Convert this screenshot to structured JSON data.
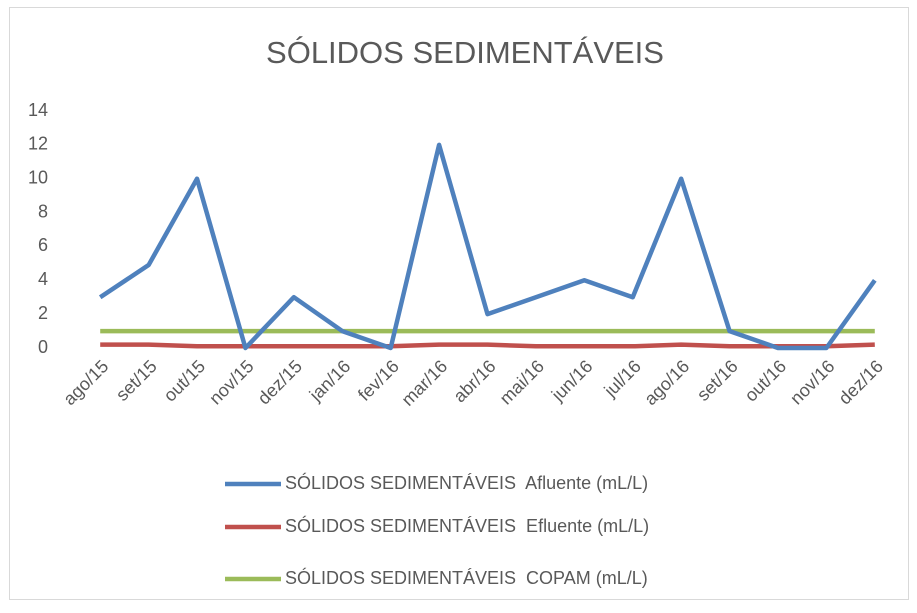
{
  "chart_data": {
    "type": "line",
    "title": "SÓLIDOS SEDIMENTÁVEIS",
    "categories": [
      "ago/15",
      "set/15",
      "out/15",
      "nov/15",
      "dez/15",
      "jan/16",
      "fev/16",
      "mar/16",
      "abr/16",
      "mai/16",
      "jun/16",
      "jul/16",
      "ago/16",
      "set/16",
      "out/16",
      "nov/16",
      "dez/16"
    ],
    "series": [
      {
        "name": "SÓLIDOS SEDIMENTÁVEIS  Afluente (mL/L)",
        "color": "#4f81bd",
        "values": [
          3,
          4.9,
          10,
          0,
          3,
          1,
          0,
          12,
          2,
          3,
          4,
          3,
          10,
          1,
          0,
          0,
          4
        ]
      },
      {
        "name": "SÓLIDOS SEDIMENTÁVEIS  Efluente (mL/L)",
        "color": "#c0504d",
        "values": [
          0.2,
          0.2,
          0.1,
          0.1,
          0.1,
          0.1,
          0.1,
          0.2,
          0.2,
          0.1,
          0.1,
          0.1,
          0.2,
          0.1,
          0.1,
          0.1,
          0.2
        ]
      },
      {
        "name": "SÓLIDOS SEDIMENTÁVEIS  COPAM (mL/L)",
        "color": "#9bbb59",
        "values": [
          1,
          1,
          1,
          1,
          1,
          1,
          1,
          1,
          1,
          1,
          1,
          1,
          1,
          1,
          1,
          1,
          1
        ]
      }
    ],
    "ylim": [
      0,
      14
    ],
    "yticks": [
      0,
      2,
      4,
      6,
      8,
      10,
      12,
      14
    ],
    "grid": false,
    "legend": "bottom"
  }
}
